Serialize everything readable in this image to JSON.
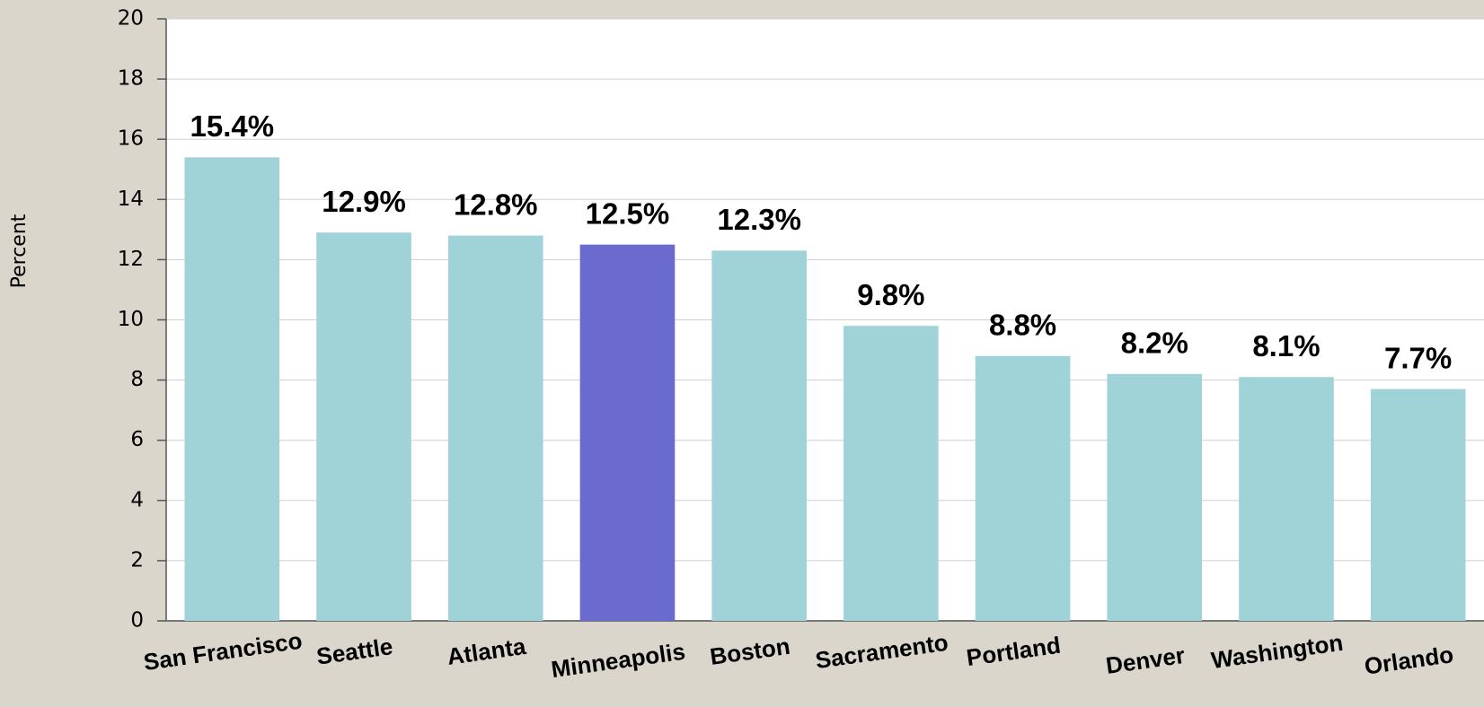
{
  "chart_data": {
    "type": "bar",
    "y_label": "Percent",
    "categories": [
      "San Francisco",
      "Seattle",
      "Atlanta",
      "Minneapolis",
      "Boston",
      "Sacramento",
      "Portland",
      "Denver",
      "Washington",
      "Orlando"
    ],
    "values": [
      15.4,
      12.9,
      12.8,
      12.5,
      12.3,
      9.8,
      8.8,
      8.2,
      8.1,
      7.7
    ],
    "value_labels": [
      "15.4%",
      "12.9%",
      "12.8%",
      "12.5%",
      "12.3%",
      "9.8%",
      "8.8%",
      "8.2%",
      "8.1%",
      "7.7%"
    ],
    "colors": [
      "#a0d3d8",
      "#a0d3d8",
      "#a0d3d8",
      "#6b6bcf",
      "#a0d3d8",
      "#a0d3d8",
      "#a0d3d8",
      "#a0d3d8",
      "#a0d3d8",
      "#a0d3d8"
    ],
    "ylim": [
      0,
      20
    ],
    "yticks": [
      0,
      2,
      4,
      6,
      8,
      10,
      12,
      14,
      16,
      18,
      20
    ],
    "grid": true
  }
}
